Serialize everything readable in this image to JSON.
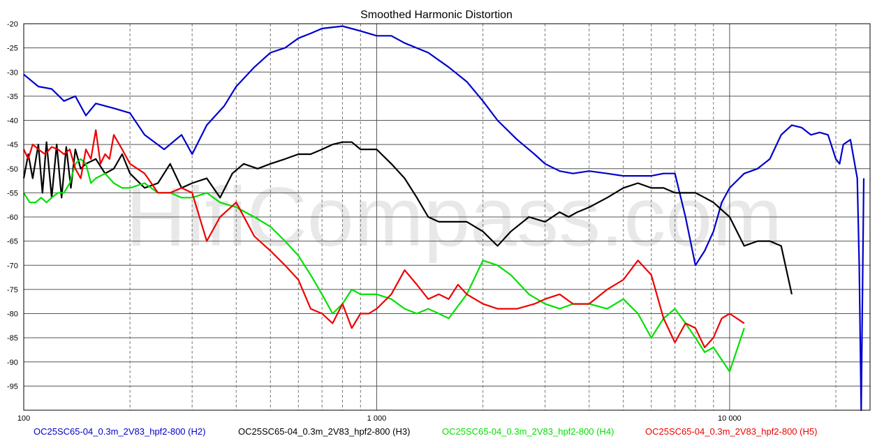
{
  "chart_data": {
    "type": "line",
    "title": "Smoothed Harmonic Distortion",
    "x_scale": "log",
    "xlim": [
      100,
      25000
    ],
    "ylim": [
      -100,
      -20
    ],
    "x_tick_labels": [
      {
        "x": 100,
        "label": "100"
      },
      {
        "x": 1000,
        "label": "1 000"
      },
      {
        "x": 10000,
        "label": "10 000"
      }
    ],
    "x_gridlines": [
      200,
      300,
      400,
      500,
      600,
      700,
      800,
      900,
      2000,
      3000,
      4000,
      5000,
      6000,
      7000,
      8000,
      9000,
      20000
    ],
    "y_ticks": [
      -20,
      -25,
      -30,
      -35,
      -40,
      -45,
      -50,
      -55,
      -60,
      -65,
      -70,
      -75,
      -80,
      -85,
      -90,
      -95
    ],
    "grid": true,
    "watermark": "HifiCompass.com",
    "series": [
      {
        "name": "OC25SC65-04_0.3m_2V83_hpf2-800 (H2)",
        "color": "#0000cc",
        "points": [
          [
            100,
            -30.5
          ],
          [
            110,
            -33
          ],
          [
            120,
            -33.5
          ],
          [
            130,
            -36
          ],
          [
            140,
            -35
          ],
          [
            150,
            -39
          ],
          [
            160,
            -36.5
          ],
          [
            180,
            -37.5
          ],
          [
            200,
            -38.5
          ],
          [
            220,
            -43
          ],
          [
            250,
            -46
          ],
          [
            280,
            -43
          ],
          [
            300,
            -47
          ],
          [
            330,
            -41
          ],
          [
            370,
            -37
          ],
          [
            400,
            -33
          ],
          [
            450,
            -29
          ],
          [
            500,
            -26
          ],
          [
            550,
            -25
          ],
          [
            600,
            -23
          ],
          [
            650,
            -22
          ],
          [
            700,
            -21
          ],
          [
            800,
            -20.5
          ],
          [
            900,
            -21.5
          ],
          [
            1000,
            -22.5
          ],
          [
            1100,
            -22.5
          ],
          [
            1200,
            -24
          ],
          [
            1400,
            -26
          ],
          [
            1600,
            -29
          ],
          [
            1800,
            -32
          ],
          [
            2000,
            -36
          ],
          [
            2200,
            -40
          ],
          [
            2500,
            -44
          ],
          [
            2800,
            -47
          ],
          [
            3000,
            -49
          ],
          [
            3300,
            -50.5
          ],
          [
            3600,
            -51
          ],
          [
            4000,
            -50.5
          ],
          [
            4500,
            -51
          ],
          [
            5000,
            -51.5
          ],
          [
            5500,
            -51.5
          ],
          [
            6000,
            -51.5
          ],
          [
            6500,
            -51
          ],
          [
            7000,
            -51
          ],
          [
            7500,
            -60
          ],
          [
            8000,
            -70
          ],
          [
            8500,
            -67
          ],
          [
            9000,
            -63
          ],
          [
            9500,
            -57
          ],
          [
            10000,
            -54
          ],
          [
            11000,
            -51
          ],
          [
            12000,
            -50
          ],
          [
            13000,
            -48
          ],
          [
            14000,
            -43
          ],
          [
            15000,
            -41
          ],
          [
            16000,
            -41.5
          ],
          [
            17000,
            -43
          ],
          [
            18000,
            -42.5
          ],
          [
            19000,
            -43
          ],
          [
            20000,
            -48
          ],
          [
            20500,
            -49
          ],
          [
            21000,
            -45
          ],
          [
            22000,
            -44
          ],
          [
            23000,
            -52
          ],
          [
            23300,
            -70
          ],
          [
            23600,
            -100
          ],
          [
            24000,
            -52
          ]
        ]
      },
      {
        "name": "OC25SC65-04_0.3m_2V83_hpf2-800 (H3)",
        "color": "#000000",
        "points": [
          [
            100,
            -52
          ],
          [
            103,
            -47
          ],
          [
            106,
            -52
          ],
          [
            110,
            -45
          ],
          [
            113,
            -55
          ],
          [
            116,
            -44.5
          ],
          [
            120,
            -56
          ],
          [
            124,
            -45
          ],
          [
            128,
            -56
          ],
          [
            132,
            -45.5
          ],
          [
            136,
            -54
          ],
          [
            140,
            -46
          ],
          [
            145,
            -50
          ],
          [
            150,
            -49
          ],
          [
            160,
            -48
          ],
          [
            170,
            -51
          ],
          [
            180,
            -50
          ],
          [
            190,
            -47
          ],
          [
            200,
            -51
          ],
          [
            220,
            -54
          ],
          [
            240,
            -53
          ],
          [
            260,
            -49
          ],
          [
            280,
            -54
          ],
          [
            300,
            -53
          ],
          [
            330,
            -52
          ],
          [
            360,
            -56
          ],
          [
            390,
            -51
          ],
          [
            420,
            -49
          ],
          [
            460,
            -50
          ],
          [
            500,
            -49
          ],
          [
            550,
            -48
          ],
          [
            600,
            -47
          ],
          [
            650,
            -47
          ],
          [
            700,
            -46
          ],
          [
            750,
            -45
          ],
          [
            800,
            -44.5
          ],
          [
            850,
            -44.5
          ],
          [
            900,
            -46
          ],
          [
            1000,
            -46
          ],
          [
            1100,
            -49
          ],
          [
            1200,
            -52
          ],
          [
            1300,
            -56
          ],
          [
            1400,
            -60
          ],
          [
            1500,
            -61
          ],
          [
            1600,
            -61
          ],
          [
            1700,
            -61
          ],
          [
            1800,
            -61
          ],
          [
            2000,
            -63
          ],
          [
            2200,
            -66
          ],
          [
            2400,
            -63
          ],
          [
            2700,
            -60
          ],
          [
            3000,
            -61
          ],
          [
            3300,
            -59
          ],
          [
            3500,
            -60
          ],
          [
            3700,
            -59
          ],
          [
            4000,
            -58
          ],
          [
            4500,
            -56
          ],
          [
            5000,
            -54
          ],
          [
            5500,
            -53
          ],
          [
            6000,
            -54
          ],
          [
            6500,
            -54
          ],
          [
            7000,
            -55
          ],
          [
            7500,
            -55
          ],
          [
            8000,
            -55
          ],
          [
            8500,
            -56
          ],
          [
            9000,
            -57
          ],
          [
            10000,
            -60
          ],
          [
            11000,
            -66
          ],
          [
            12000,
            -65
          ],
          [
            13000,
            -65
          ],
          [
            14000,
            -66
          ],
          [
            15000,
            -76
          ]
        ]
      },
      {
        "name": "OC25SC65-04_0.3m_2V83_hpf2-800 (H4)",
        "color": "#00e000",
        "points": [
          [
            100,
            -55
          ],
          [
            104,
            -57
          ],
          [
            108,
            -57
          ],
          [
            112,
            -56
          ],
          [
            116,
            -57
          ],
          [
            120,
            -56
          ],
          [
            125,
            -55
          ],
          [
            130,
            -55
          ],
          [
            135,
            -53
          ],
          [
            140,
            -49
          ],
          [
            145,
            -48
          ],
          [
            150,
            -49
          ],
          [
            155,
            -53
          ],
          [
            160,
            -52
          ],
          [
            170,
            -51
          ],
          [
            180,
            -53
          ],
          [
            190,
            -54
          ],
          [
            200,
            -54
          ],
          [
            220,
            -53
          ],
          [
            240,
            -55
          ],
          [
            260,
            -55
          ],
          [
            280,
            -56
          ],
          [
            300,
            -56
          ],
          [
            330,
            -55
          ],
          [
            360,
            -57
          ],
          [
            400,
            -58
          ],
          [
            450,
            -60
          ],
          [
            500,
            -62
          ],
          [
            550,
            -65
          ],
          [
            600,
            -68
          ],
          [
            650,
            -72
          ],
          [
            700,
            -76
          ],
          [
            750,
            -80
          ],
          [
            800,
            -78
          ],
          [
            850,
            -75
          ],
          [
            900,
            -76
          ],
          [
            950,
            -76
          ],
          [
            1000,
            -76
          ],
          [
            1100,
            -77
          ],
          [
            1200,
            -79
          ],
          [
            1300,
            -80
          ],
          [
            1400,
            -79
          ],
          [
            1500,
            -80
          ],
          [
            1600,
            -81
          ],
          [
            1800,
            -76
          ],
          [
            2000,
            -69
          ],
          [
            2200,
            -70
          ],
          [
            2400,
            -72
          ],
          [
            2700,
            -76
          ],
          [
            3000,
            -78
          ],
          [
            3300,
            -79
          ],
          [
            3600,
            -78
          ],
          [
            4000,
            -78
          ],
          [
            4500,
            -79
          ],
          [
            5000,
            -77
          ],
          [
            5500,
            -80
          ],
          [
            6000,
            -85
          ],
          [
            6500,
            -81
          ],
          [
            7000,
            -79
          ],
          [
            7500,
            -82
          ],
          [
            8000,
            -85
          ],
          [
            8500,
            -88
          ],
          [
            9000,
            -87
          ],
          [
            10000,
            -92
          ],
          [
            11000,
            -83
          ]
        ]
      },
      {
        "name": "OC25SC65-04_0.3m_2V83_hpf2-800 (H5)",
        "color": "#ee0000",
        "points": [
          [
            100,
            -46
          ],
          [
            103,
            -48
          ],
          [
            106,
            -45
          ],
          [
            110,
            -46
          ],
          [
            115,
            -47
          ],
          [
            120,
            -45.5
          ],
          [
            125,
            -46
          ],
          [
            130,
            -47
          ],
          [
            135,
            -46
          ],
          [
            140,
            -50
          ],
          [
            145,
            -52
          ],
          [
            150,
            -46
          ],
          [
            155,
            -48
          ],
          [
            160,
            -42
          ],
          [
            165,
            -49
          ],
          [
            170,
            -47
          ],
          [
            175,
            -48
          ],
          [
            180,
            -43
          ],
          [
            190,
            -46
          ],
          [
            200,
            -49
          ],
          [
            220,
            -51
          ],
          [
            240,
            -55
          ],
          [
            260,
            -55
          ],
          [
            280,
            -54
          ],
          [
            300,
            -55
          ],
          [
            330,
            -65
          ],
          [
            360,
            -60
          ],
          [
            400,
            -57
          ],
          [
            450,
            -64
          ],
          [
            500,
            -67
          ],
          [
            550,
            -70
          ],
          [
            600,
            -73
          ],
          [
            650,
            -79
          ],
          [
            700,
            -80
          ],
          [
            750,
            -82
          ],
          [
            800,
            -78
          ],
          [
            850,
            -83
          ],
          [
            900,
            -80
          ],
          [
            950,
            -80
          ],
          [
            1000,
            -79
          ],
          [
            1100,
            -76
          ],
          [
            1200,
            -71
          ],
          [
            1300,
            -74
          ],
          [
            1400,
            -77
          ],
          [
            1500,
            -76
          ],
          [
            1600,
            -77
          ],
          [
            1700,
            -74
          ],
          [
            1800,
            -76
          ],
          [
            2000,
            -78
          ],
          [
            2200,
            -79
          ],
          [
            2500,
            -79
          ],
          [
            2800,
            -78
          ],
          [
            3000,
            -77
          ],
          [
            3300,
            -76
          ],
          [
            3600,
            -78
          ],
          [
            4000,
            -78
          ],
          [
            4500,
            -75
          ],
          [
            5000,
            -73
          ],
          [
            5500,
            -69
          ],
          [
            6000,
            -72
          ],
          [
            6500,
            -81
          ],
          [
            7000,
            -86
          ],
          [
            7500,
            -82
          ],
          [
            8000,
            -83
          ],
          [
            8500,
            -87
          ],
          [
            9000,
            -85
          ],
          [
            9500,
            -81
          ],
          [
            10000,
            -80
          ],
          [
            11000,
            -82
          ]
        ]
      }
    ]
  }
}
